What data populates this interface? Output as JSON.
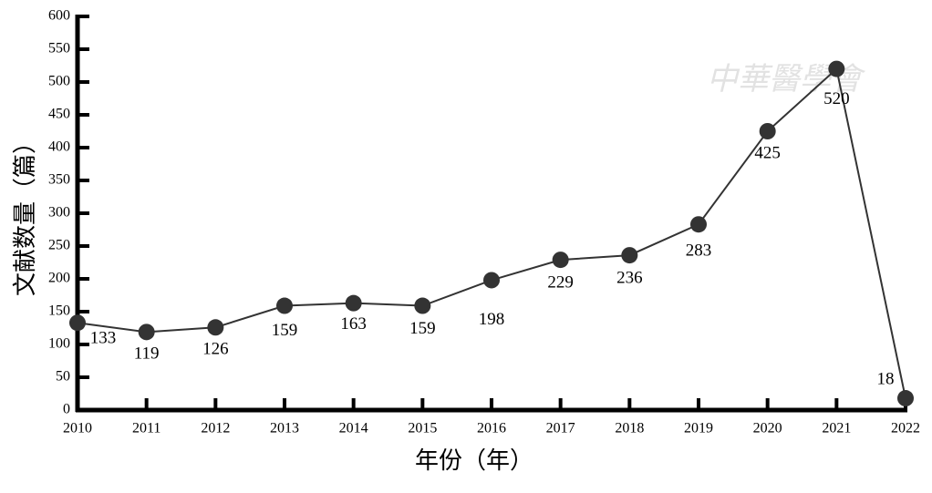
{
  "chart_data": {
    "type": "line",
    "x_label": "年份（年）",
    "y_label": "文献数量（篇）",
    "watermark": "中華醫學會",
    "categories": [
      "2010",
      "2011",
      "2012",
      "2013",
      "2014",
      "2015",
      "2016",
      "2017",
      "2018",
      "2019",
      "2020",
      "2021",
      "2022"
    ],
    "values": [
      133,
      119,
      126,
      159,
      163,
      159,
      198,
      229,
      236,
      283,
      425,
      520,
      18
    ],
    "color": "#333333",
    "ylim": [
      0,
      600
    ],
    "yticks": [
      0,
      50,
      100,
      150,
      200,
      250,
      300,
      350,
      400,
      450,
      500,
      550,
      600
    ]
  }
}
